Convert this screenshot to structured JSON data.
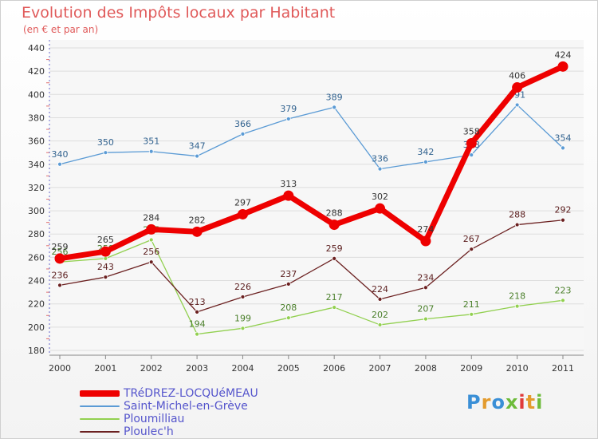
{
  "title": "Evolution des Impôts locaux par Habitant",
  "subtitle": "(en € et par an)",
  "logo_text": "Proxiti",
  "chart_data": {
    "type": "line",
    "x": [
      "2000",
      "2001",
      "2002",
      "2003",
      "2004",
      "2005",
      "2006",
      "2007",
      "2008",
      "2009",
      "2010",
      "2011"
    ],
    "ylim": [
      180,
      440
    ],
    "yticks": [
      180,
      200,
      220,
      240,
      260,
      280,
      300,
      320,
      340,
      360,
      380,
      400,
      420,
      440
    ],
    "grid": true,
    "legend": "bottom-left",
    "series": [
      {
        "name": "Saint-Michel-en-Grève",
        "color": "#5b9bd5",
        "width": 1.3,
        "dot": 5,
        "label_color": "#31628f",
        "values": [
          340,
          350,
          351,
          347,
          366,
          379,
          389,
          336,
          342,
          348,
          391,
          354
        ]
      },
      {
        "name": "Ploumilliau",
        "color": "#92d050",
        "width": 1.3,
        "dot": 5,
        "label_color": "#4a7f2a",
        "values": [
          256,
          259,
          275,
          194,
          199,
          208,
          217,
          202,
          207,
          211,
          218,
          223
        ]
      },
      {
        "name": "Ploulec'h",
        "color": "#6b2020",
        "width": 1.3,
        "dot": 5,
        "label_color": "#5a1c1c",
        "values": [
          236,
          243,
          256,
          213,
          226,
          237,
          259,
          224,
          234,
          267,
          288,
          292
        ]
      },
      {
        "name": "TRéDREZ-LOCQUéMEAU",
        "color": "#ee0000",
        "width": 7,
        "dot": 13,
        "label_color": "#333333",
        "values": [
          259,
          265,
          284,
          282,
          297,
          313,
          288,
          302,
          274,
          358,
          406,
          424
        ]
      }
    ]
  }
}
